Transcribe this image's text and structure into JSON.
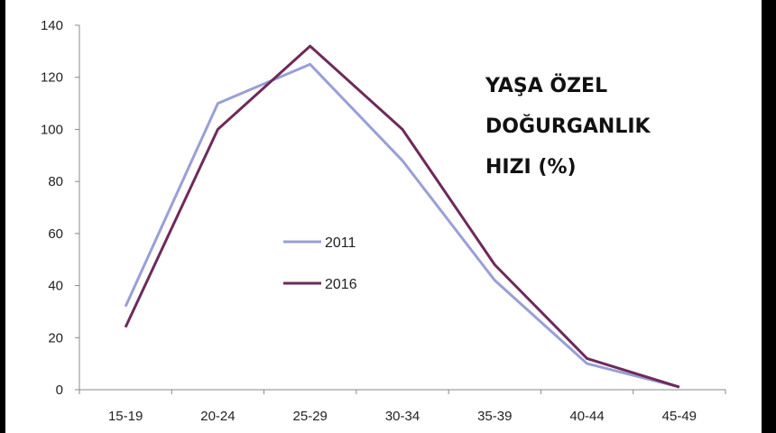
{
  "chart_data": {
    "type": "line",
    "title_lines": [
      "YAŞA ÖZEL",
      "DOĞURGANLIK",
      "HIZI (%)"
    ],
    "categories": [
      "15-19",
      "20-24",
      "25-29",
      "30-34",
      "35-39",
      "40-44",
      "45-49"
    ],
    "ylim": [
      0,
      140
    ],
    "yticks": [
      0,
      20,
      40,
      60,
      80,
      100,
      120,
      140
    ],
    "grid": false,
    "legend_position": "center",
    "series": [
      {
        "name": "2011",
        "color": "#9a9fd6",
        "values": [
          32,
          110,
          125,
          88,
          42,
          10,
          1
        ]
      },
      {
        "name": "2016",
        "color": "#6e2a5a",
        "values": [
          24,
          100,
          132,
          100,
          48,
          12,
          1
        ]
      }
    ]
  }
}
